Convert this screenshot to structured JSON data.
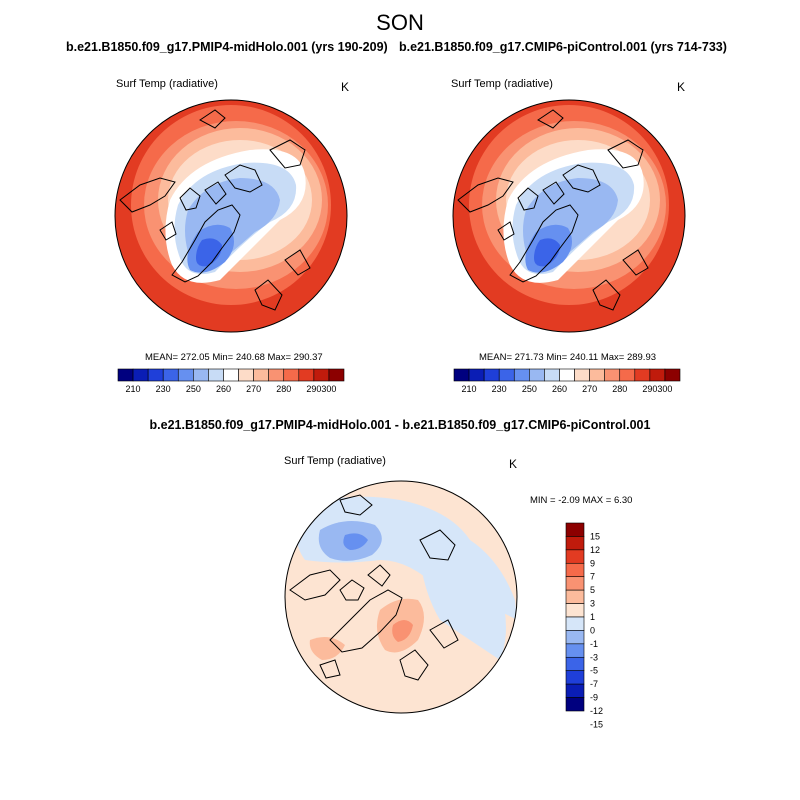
{
  "season": "SON",
  "panels": [
    {
      "title": "b.e21.B1850.f09_g17.PMIP4-midHolo.001 (yrs 190-209)",
      "variable": "Surf Temp (radiative)",
      "units": "K",
      "stats": "MEAN= 272.05   Min= 240.68   Max= 290.37"
    },
    {
      "title": "b.e21.B1850.f09_g17.CMIP6-piControl.001 (yrs 714-733)",
      "variable": "Surf Temp (radiative)",
      "units": "K",
      "stats": "MEAN= 271.73   Min= 240.11   Max= 289.93"
    }
  ],
  "difference": {
    "title": "b.e21.B1850.f09_g17.PMIP4-midHolo.001 - b.e21.B1850.f09_g17.CMIP6-piControl.001",
    "variable": "Surf Temp (radiative)",
    "units": "K",
    "stats": "MIN =  -2.09 MAX =   6.30"
  },
  "colors": {
    "abs_scale": [
      "#00007f",
      "#0a1db5",
      "#1f3fd9",
      "#3b64e8",
      "#6690f0",
      "#99b8f2",
      "#c8dcf6",
      "#ffffff",
      "#fddcc8",
      "#fcbb9c",
      "#f99272",
      "#f56a4a",
      "#e23b22",
      "#c01b0c",
      "#8c0000"
    ],
    "diff_scale": [
      "#00007f",
      "#0a1db5",
      "#1f3fd9",
      "#3b64e8",
      "#6690f0",
      "#99b8f2",
      "#d6e6f9",
      "#fde4d2",
      "#fcbb9c",
      "#f99272",
      "#f56a4a",
      "#e23b22",
      "#c01b0c",
      "#8c0000"
    ],
    "coast": "#000000"
  },
  "chart_data": [
    {
      "type": "heatmap",
      "projection": "north-polar-stereographic",
      "title": "b.e21.B1850.f09_g17.PMIP4-midHolo.001 (yrs 190-209)",
      "variable": "Surf Temp (radiative)",
      "units": "K",
      "mean": 272.05,
      "min": 240.68,
      "max": 290.37,
      "colorbar": {
        "orientation": "horizontal",
        "levels": [
          205,
          210,
          220,
          230,
          240,
          250,
          255,
          260,
          265,
          270,
          275,
          280,
          285,
          290,
          295,
          300
        ],
        "labels": [
          "210",
          "230",
          "250",
          "260",
          "270",
          "280",
          "290",
          "300"
        ]
      }
    },
    {
      "type": "heatmap",
      "projection": "north-polar-stereographic",
      "title": "b.e21.B1850.f09_g17.CMIP6-piControl.001 (yrs 714-733)",
      "variable": "Surf Temp (radiative)",
      "units": "K",
      "mean": 271.73,
      "min": 240.11,
      "max": 289.93,
      "colorbar": {
        "orientation": "horizontal",
        "levels": [
          205,
          210,
          220,
          230,
          240,
          250,
          255,
          260,
          265,
          270,
          275,
          280,
          285,
          290,
          295,
          300
        ],
        "labels": [
          "210",
          "230",
          "250",
          "260",
          "270",
          "280",
          "290",
          "300"
        ]
      }
    },
    {
      "type": "heatmap",
      "projection": "north-polar-stereographic",
      "title": "b.e21.B1850.f09_g17.PMIP4-midHolo.001 - b.e21.B1850.f09_g17.CMIP6-piControl.001",
      "variable": "Surf Temp (radiative)",
      "units": "K",
      "min": -2.09,
      "max": 6.3,
      "colorbar": {
        "orientation": "vertical",
        "labels": [
          "15",
          "12",
          "9",
          "7",
          "5",
          "3",
          "1",
          "0",
          "-1",
          "-3",
          "-5",
          "-7",
          "-9",
          "-12",
          "-15"
        ]
      }
    }
  ]
}
